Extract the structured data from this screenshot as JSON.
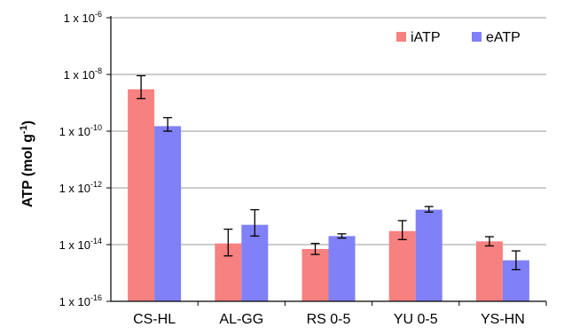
{
  "chart_data": {
    "type": "bar",
    "y_scale": "log",
    "ylim_exponent": [
      -16,
      -6
    ],
    "y_ticks": [
      {
        "base": "1 x 10",
        "exp": "-6",
        "value": 1e-06
      },
      {
        "base": "1 x 10",
        "exp": "-8",
        "value": 1e-08
      },
      {
        "base": "1 x 10",
        "exp": "-10",
        "value": 1e-10
      },
      {
        "base": "1 x 10",
        "exp": "-12",
        "value": 1e-12
      },
      {
        "base": "1 x 10",
        "exp": "-14",
        "value": 1e-14
      },
      {
        "base": "1 x 10",
        "exp": "-16",
        "value": 1e-16
      }
    ],
    "ylabel": {
      "main": "ATP (mol g",
      "sup": "-1",
      "tail": ")"
    },
    "xlabel": "",
    "grid": true,
    "legend_position": "top-right",
    "categories": [
      "CS-HL",
      "AL-GG",
      "RS 0-5",
      "YU 0-5",
      "YS-HN"
    ],
    "series": [
      {
        "name": "iATP",
        "color": "#f78080",
        "values": [
          3e-09,
          1.1e-14,
          7e-15,
          3e-14,
          1.3e-14
        ],
        "err_low": [
          1.4e-09,
          4e-15,
          4.5e-15,
          1.5e-14,
          9e-15
        ],
        "err_high": [
          9e-09,
          3.5e-14,
          1.1e-14,
          7e-14,
          1.9e-14
        ]
      },
      {
        "name": "eATP",
        "color": "#8080f8",
        "values": [
          1.5e-10,
          5e-14,
          2e-14,
          1.7e-13,
          2.8e-15
        ],
        "err_low": [
          1e-10,
          2e-14,
          1.7e-14,
          1.4e-13,
          1.3e-15
        ],
        "err_high": [
          3e-10,
          1.7e-13,
          2.4e-14,
          2.2e-13,
          6e-15
        ]
      }
    ]
  }
}
